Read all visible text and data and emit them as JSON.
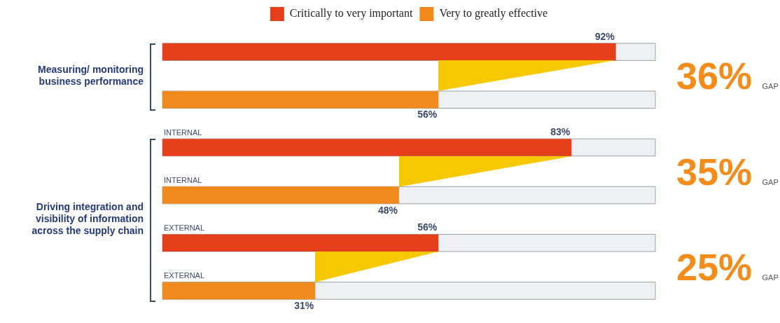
{
  "chart_data": {
    "type": "bar",
    "orientation": "horizontal",
    "categories": [
      null,
      null,
      "INTERNAL",
      "INTERNAL",
      "EXTERNAL",
      "EXTERNAL"
    ],
    "series": [
      {
        "name": "Critically to very important",
        "color": "#e5401b",
        "values": [
          92,
          null,
          83,
          null,
          56,
          null
        ],
        "value_labels": [
          "92%",
          null,
          "83%",
          null,
          "56%",
          null
        ]
      },
      {
        "name": "Very to greatly effective",
        "color": "#f08a1c",
        "values": [
          null,
          56,
          null,
          48,
          null,
          31
        ],
        "value_labels": [
          null,
          "56%",
          null,
          "48%",
          null,
          "31%"
        ]
      }
    ],
    "xlim": [
      0,
      100
    ],
    "tick_labels": "y",
    "legend": "top",
    "annotations": [
      "Measuring/ monitoring business performance",
      "Driving integration and visibility of information across the supply chain",
      "36% GAP",
      "35% GAP",
      "25% GAP"
    ]
  }
}
